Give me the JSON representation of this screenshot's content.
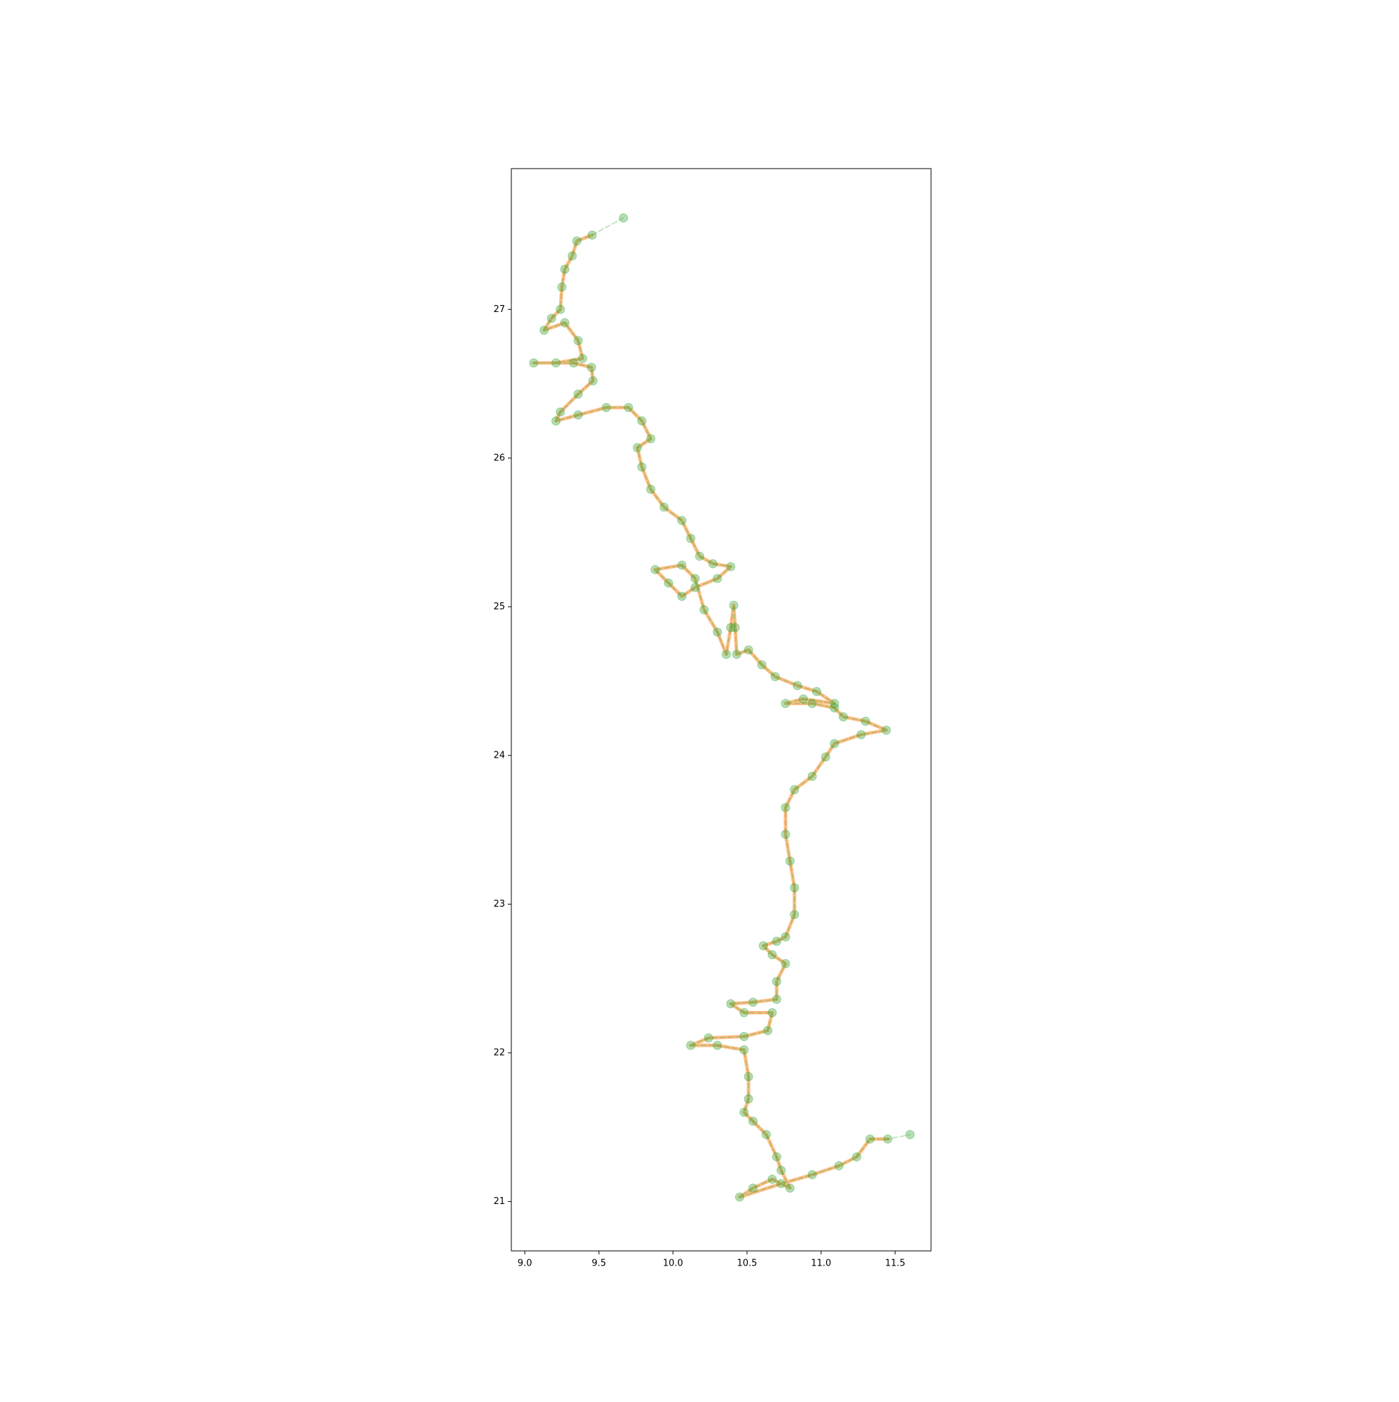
{
  "chart_data": {
    "type": "line",
    "xlim": [
      8.909,
      11.742
    ],
    "ylim": [
      20.668,
      27.947
    ],
    "xticks": [
      {
        "value": 9,
        "label": "9.0"
      },
      9.5,
      {
        "value": 10,
        "label": "10.0"
      },
      10.5,
      {
        "value": 11,
        "label": "11.0"
      },
      11.5
    ],
    "yticks": [
      21,
      22,
      23,
      24,
      25,
      26,
      27
    ],
    "grid": false,
    "series": [
      {
        "color": "#ff7f0e",
        "linestyle": "solid",
        "marker": false,
        "x": [
          9.454,
          9.351,
          9.32,
          9.27,
          9.25,
          9.24,
          9.18,
          9.13,
          9.27,
          9.36,
          9.39,
          9.21,
          9.06,
          9.33,
          9.45,
          9.46,
          9.36,
          9.24,
          9.21,
          9.36,
          9.55,
          9.7,
          9.79,
          9.85,
          9.76,
          9.79,
          9.85,
          9.94,
          10.06,
          10.12,
          10.18,
          10.27,
          10.39,
          10.3,
          10.15,
          10.06,
          9.97,
          9.88,
          10.06,
          10.15,
          10.21,
          10.3,
          10.36,
          10.39,
          10.41,
          10.42,
          10.43,
          10.51,
          10.6,
          10.69,
          10.84,
          10.97,
          11.09,
          10.88,
          10.76,
          10.94,
          11.09,
          11.15,
          11.3,
          11.44,
          11.27,
          11.09,
          11.03,
          10.94,
          10.82,
          10.76,
          10.76,
          10.79,
          10.82,
          10.82,
          10.76,
          10.7,
          10.61,
          10.67,
          10.76,
          10.7,
          10.7,
          10.54,
          10.39,
          10.48,
          10.67,
          10.64,
          10.48,
          10.24,
          10.12,
          10.3,
          10.48,
          10.51,
          10.51,
          10.48,
          10.54,
          10.63,
          10.7,
          10.73,
          10.79,
          10.67,
          10.54,
          10.45,
          10.73,
          10.94,
          11.12,
          11.24,
          11.33,
          11.45
        ],
        "values": [
          27.5,
          27.46,
          27.36,
          27.27,
          27.15,
          27.0,
          26.94,
          26.86,
          26.91,
          26.79,
          26.67,
          26.64,
          26.64,
          26.64,
          26.61,
          26.52,
          26.43,
          26.31,
          26.25,
          26.29,
          26.34,
          26.34,
          26.25,
          26.13,
          26.07,
          25.94,
          25.79,
          25.67,
          25.58,
          25.46,
          25.34,
          25.29,
          25.27,
          25.19,
          25.13,
          25.07,
          25.16,
          25.25,
          25.28,
          25.19,
          24.98,
          24.83,
          24.68,
          24.86,
          25.01,
          24.86,
          24.68,
          24.71,
          24.61,
          24.53,
          24.47,
          24.43,
          24.35,
          24.38,
          24.35,
          24.35,
          24.32,
          24.26,
          24.23,
          24.17,
          24.14,
          24.08,
          23.99,
          23.86,
          23.77,
          23.65,
          23.47,
          23.29,
          23.11,
          22.93,
          22.78,
          22.75,
          22.72,
          22.66,
          22.6,
          22.48,
          22.36,
          22.34,
          22.33,
          22.27,
          22.27,
          22.15,
          22.11,
          22.1,
          22.05,
          22.05,
          22.02,
          21.84,
          21.69,
          21.6,
          21.54,
          21.45,
          21.3,
          21.21,
          21.09,
          21.15,
          21.09,
          21.03,
          21.12,
          21.18,
          21.24,
          21.3,
          21.42,
          21.42
        ]
      },
      {
        "color": "#2ca02c",
        "linestyle": "dashed",
        "marker": true,
        "x": [
          9.666,
          9.454,
          9.351,
          9.32,
          9.27,
          9.25,
          9.24,
          9.18,
          9.13,
          9.27,
          9.36,
          9.39,
          9.21,
          9.06,
          9.33,
          9.45,
          9.46,
          9.36,
          9.24,
          9.21,
          9.36,
          9.55,
          9.7,
          9.79,
          9.85,
          9.76,
          9.79,
          9.85,
          9.94,
          10.06,
          10.12,
          10.18,
          10.27,
          10.39,
          10.3,
          10.15,
          10.06,
          9.97,
          9.88,
          10.06,
          10.15,
          10.21,
          10.3,
          10.36,
          10.39,
          10.41,
          10.42,
          10.43,
          10.51,
          10.6,
          10.69,
          10.84,
          10.97,
          11.09,
          10.88,
          10.76,
          10.94,
          11.09,
          11.15,
          11.3,
          11.44,
          11.27,
          11.09,
          11.03,
          10.94,
          10.82,
          10.76,
          10.76,
          10.79,
          10.82,
          10.82,
          10.76,
          10.7,
          10.61,
          10.67,
          10.76,
          10.7,
          10.7,
          10.54,
          10.39,
          10.48,
          10.67,
          10.64,
          10.48,
          10.24,
          10.12,
          10.3,
          10.48,
          10.51,
          10.51,
          10.48,
          10.54,
          10.63,
          10.7,
          10.73,
          10.79,
          10.67,
          10.54,
          10.45,
          10.73,
          10.94,
          11.12,
          11.24,
          11.33,
          11.45,
          11.6
        ],
        "values": [
          27.615,
          27.5,
          27.46,
          27.36,
          27.27,
          27.15,
          27.0,
          26.94,
          26.86,
          26.91,
          26.79,
          26.67,
          26.64,
          26.64,
          26.64,
          26.61,
          26.52,
          26.43,
          26.31,
          26.25,
          26.29,
          26.34,
          26.34,
          26.25,
          26.13,
          26.07,
          25.94,
          25.79,
          25.67,
          25.58,
          25.46,
          25.34,
          25.29,
          25.27,
          25.19,
          25.13,
          25.07,
          25.16,
          25.25,
          25.28,
          25.19,
          24.98,
          24.83,
          24.68,
          24.86,
          25.01,
          24.86,
          24.68,
          24.71,
          24.61,
          24.53,
          24.47,
          24.43,
          24.35,
          24.38,
          24.35,
          24.35,
          24.32,
          24.26,
          24.23,
          24.17,
          24.14,
          24.08,
          23.99,
          23.86,
          23.77,
          23.65,
          23.47,
          23.29,
          23.11,
          22.93,
          22.78,
          22.75,
          22.72,
          22.66,
          22.6,
          22.48,
          22.36,
          22.34,
          22.33,
          22.27,
          22.27,
          22.15,
          22.11,
          22.1,
          22.05,
          22.05,
          22.02,
          21.84,
          21.69,
          21.6,
          21.54,
          21.45,
          21.3,
          21.21,
          21.09,
          21.15,
          21.09,
          21.03,
          21.12,
          21.18,
          21.24,
          21.3,
          21.42,
          21.42,
          21.45
        ]
      }
    ]
  }
}
